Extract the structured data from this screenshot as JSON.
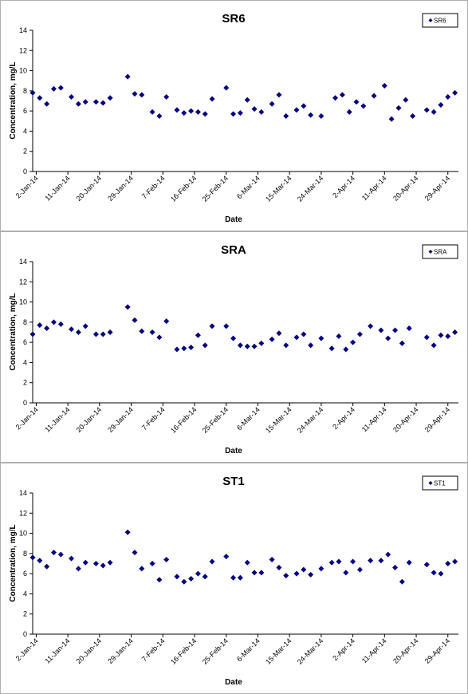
{
  "chart_data": [
    {
      "type": "scatter",
      "title": "SR6",
      "xlabel": "Date",
      "ylabel": "Concentration, mg/L",
      "ylim": [
        0,
        14
      ],
      "yticks": [
        0,
        2,
        4,
        6,
        8,
        10,
        12,
        14
      ],
      "xticks": [
        "2-Jan-14",
        "11-Jan-14",
        "20-Jan-14",
        "29-Jan-14",
        "7-Feb-14",
        "16-Feb-14",
        "25-Feb-14",
        "6-Mar-14",
        "15-Mar-14",
        "24-Mar-14",
        "2-Apr-14",
        "11-Apr-14",
        "20-Apr-14",
        "29-Apr-14"
      ],
      "xlim": [
        "1-Jan-14",
        "2-May-14"
      ],
      "grid": false,
      "legend": "top-right",
      "color": "#000080",
      "series": [
        {
          "name": "SR6",
          "points": [
            [
              "1-Jan-14",
              7.8
            ],
            [
              "3-Jan-14",
              7.3
            ],
            [
              "5-Jan-14",
              6.7
            ],
            [
              "7-Jan-14",
              8.2
            ],
            [
              "9-Jan-14",
              8.3
            ],
            [
              "12-Jan-14",
              7.4
            ],
            [
              "14-Jan-14",
              6.7
            ],
            [
              "16-Jan-14",
              6.9
            ],
            [
              "19-Jan-14",
              6.9
            ],
            [
              "21-Jan-14",
              6.8
            ],
            [
              "23-Jan-14",
              7.3
            ],
            [
              "28-Jan-14",
              9.4
            ],
            [
              "30-Jan-14",
              7.7
            ],
            [
              "1-Feb-14",
              7.6
            ],
            [
              "4-Feb-14",
              5.9
            ],
            [
              "6-Feb-14",
              5.5
            ],
            [
              "8-Feb-14",
              7.4
            ],
            [
              "11-Feb-14",
              6.1
            ],
            [
              "13-Feb-14",
              5.8
            ],
            [
              "15-Feb-14",
              6.0
            ],
            [
              "17-Feb-14",
              5.9
            ],
            [
              "19-Feb-14",
              5.7
            ],
            [
              "21-Feb-14",
              7.2
            ],
            [
              "25-Feb-14",
              8.3
            ],
            [
              "27-Feb-14",
              5.7
            ],
            [
              "1-Mar-14",
              5.8
            ],
            [
              "3-Mar-14",
              7.1
            ],
            [
              "5-Mar-14",
              6.2
            ],
            [
              "7-Mar-14",
              5.9
            ],
            [
              "10-Mar-14",
              6.7
            ],
            [
              "12-Mar-14",
              7.6
            ],
            [
              "14-Mar-14",
              5.5
            ],
            [
              "17-Mar-14",
              6.1
            ],
            [
              "19-Mar-14",
              6.5
            ],
            [
              "21-Mar-14",
              5.6
            ],
            [
              "24-Mar-14",
              5.5
            ],
            [
              "28-Mar-14",
              7.3
            ],
            [
              "30-Mar-14",
              7.6
            ],
            [
              "1-Apr-14",
              5.9
            ],
            [
              "3-Apr-14",
              6.9
            ],
            [
              "5-Apr-14",
              6.5
            ],
            [
              "8-Apr-14",
              7.5
            ],
            [
              "11-Apr-14",
              8.5
            ],
            [
              "13-Apr-14",
              5.2
            ],
            [
              "15-Apr-14",
              6.3
            ],
            [
              "17-Apr-14",
              7.1
            ],
            [
              "19-Apr-14",
              5.5
            ],
            [
              "23-Apr-14",
              6.1
            ],
            [
              "25-Apr-14",
              5.9
            ],
            [
              "27-Apr-14",
              6.6
            ],
            [
              "29-Apr-14",
              7.4
            ],
            [
              "1-May-14",
              7.8
            ]
          ]
        }
      ]
    },
    {
      "type": "scatter",
      "title": "SRA",
      "xlabel": "Date",
      "ylabel": "Concentration, mg/L",
      "ylim": [
        0,
        14
      ],
      "yticks": [
        0,
        2,
        4,
        6,
        8,
        10,
        12,
        14
      ],
      "xticks": [
        "2-Jan-14",
        "11-Jan-14",
        "20-Jan-14",
        "29-Jan-14",
        "7-Feb-14",
        "16-Feb-14",
        "25-Feb-14",
        "6-Mar-14",
        "15-Mar-14",
        "24-Mar-14",
        "2-Apr-14",
        "11-Apr-14",
        "20-Apr-14",
        "29-Apr-14"
      ],
      "xlim": [
        "1-Jan-14",
        "2-May-14"
      ],
      "grid": false,
      "legend": "top-right",
      "color": "#000080",
      "series": [
        {
          "name": "SRA",
          "points": [
            [
              "1-Jan-14",
              6.8
            ],
            [
              "3-Jan-14",
              7.7
            ],
            [
              "5-Jan-14",
              7.4
            ],
            [
              "7-Jan-14",
              8.0
            ],
            [
              "9-Jan-14",
              7.8
            ],
            [
              "12-Jan-14",
              7.3
            ],
            [
              "14-Jan-14",
              7.0
            ],
            [
              "16-Jan-14",
              7.6
            ],
            [
              "19-Jan-14",
              6.8
            ],
            [
              "21-Jan-14",
              6.8
            ],
            [
              "23-Jan-14",
              7.0
            ],
            [
              "28-Jan-14",
              9.5
            ],
            [
              "30-Jan-14",
              8.2
            ],
            [
              "1-Feb-14",
              7.1
            ],
            [
              "4-Feb-14",
              7.0
            ],
            [
              "6-Feb-14",
              6.5
            ],
            [
              "8-Feb-14",
              8.1
            ],
            [
              "11-Feb-14",
              5.3
            ],
            [
              "13-Feb-14",
              5.4
            ],
            [
              "15-Feb-14",
              5.5
            ],
            [
              "17-Feb-14",
              6.7
            ],
            [
              "19-Feb-14",
              5.7
            ],
            [
              "21-Feb-14",
              7.6
            ],
            [
              "25-Feb-14",
              7.6
            ],
            [
              "27-Feb-14",
              6.4
            ],
            [
              "1-Mar-14",
              5.7
            ],
            [
              "3-Mar-14",
              5.6
            ],
            [
              "5-Mar-14",
              5.6
            ],
            [
              "7-Mar-14",
              5.9
            ],
            [
              "10-Mar-14",
              6.3
            ],
            [
              "12-Mar-14",
              6.9
            ],
            [
              "14-Mar-14",
              5.7
            ],
            [
              "17-Mar-14",
              6.5
            ],
            [
              "19-Mar-14",
              6.8
            ],
            [
              "21-Mar-14",
              5.7
            ],
            [
              "24-Mar-14",
              6.4
            ],
            [
              "27-Mar-14",
              5.4
            ],
            [
              "29-Mar-14",
              6.6
            ],
            [
              "31-Mar-14",
              5.3
            ],
            [
              "2-Apr-14",
              6.0
            ],
            [
              "4-Apr-14",
              6.8
            ],
            [
              "7-Apr-14",
              7.6
            ],
            [
              "10-Apr-14",
              7.2
            ],
            [
              "12-Apr-14",
              6.4
            ],
            [
              "14-Apr-14",
              7.2
            ],
            [
              "16-Apr-14",
              5.9
            ],
            [
              "18-Apr-14",
              7.4
            ],
            [
              "23-Apr-14",
              6.5
            ],
            [
              "25-Apr-14",
              5.7
            ],
            [
              "27-Apr-14",
              6.7
            ],
            [
              "29-Apr-14",
              6.6
            ],
            [
              "1-May-14",
              7.0
            ]
          ]
        }
      ]
    },
    {
      "type": "scatter",
      "title": "ST1",
      "xlabel": "Date",
      "ylabel": "Concentration, mg/L",
      "ylim": [
        0,
        14
      ],
      "yticks": [
        0,
        2,
        4,
        6,
        8,
        10,
        12,
        14
      ],
      "xticks": [
        "2-Jan-14",
        "11-Jan-14",
        "20-Jan-14",
        "29-Jan-14",
        "7-Feb-14",
        "16-Feb-14",
        "25-Feb-14",
        "6-Mar-14",
        "15-Mar-14",
        "24-Mar-14",
        "2-Apr-14",
        "11-Apr-14",
        "20-Apr-14",
        "29-Apr-14"
      ],
      "xlim": [
        "1-Jan-14",
        "2-May-14"
      ],
      "grid": false,
      "legend": "top-right",
      "color": "#000080",
      "series": [
        {
          "name": "ST1",
          "points": [
            [
              "1-Jan-14",
              7.6
            ],
            [
              "3-Jan-14",
              7.3
            ],
            [
              "5-Jan-14",
              6.7
            ],
            [
              "7-Jan-14",
              8.1
            ],
            [
              "9-Jan-14",
              7.9
            ],
            [
              "12-Jan-14",
              7.5
            ],
            [
              "14-Jan-14",
              6.5
            ],
            [
              "16-Jan-14",
              7.1
            ],
            [
              "19-Jan-14",
              7.0
            ],
            [
              "21-Jan-14",
              6.8
            ],
            [
              "23-Jan-14",
              7.1
            ],
            [
              "28-Jan-14",
              10.1
            ],
            [
              "30-Jan-14",
              8.1
            ],
            [
              "1-Feb-14",
              6.5
            ],
            [
              "4-Feb-14",
              7.0
            ],
            [
              "6-Feb-14",
              5.4
            ],
            [
              "8-Feb-14",
              7.4
            ],
            [
              "11-Feb-14",
              5.7
            ],
            [
              "13-Feb-14",
              5.2
            ],
            [
              "15-Feb-14",
              5.5
            ],
            [
              "17-Feb-14",
              6.0
            ],
            [
              "19-Feb-14",
              5.7
            ],
            [
              "21-Feb-14",
              7.2
            ],
            [
              "25-Feb-14",
              7.7
            ],
            [
              "27-Feb-14",
              5.6
            ],
            [
              "1-Mar-14",
              5.6
            ],
            [
              "3-Mar-14",
              7.1
            ],
            [
              "5-Mar-14",
              6.1
            ],
            [
              "7-Mar-14",
              6.1
            ],
            [
              "10-Mar-14",
              7.4
            ],
            [
              "12-Mar-14",
              6.6
            ],
            [
              "14-Mar-14",
              5.8
            ],
            [
              "17-Mar-14",
              6.0
            ],
            [
              "19-Mar-14",
              6.4
            ],
            [
              "21-Mar-14",
              5.9
            ],
            [
              "24-Mar-14",
              6.5
            ],
            [
              "27-Mar-14",
              7.1
            ],
            [
              "29-Mar-14",
              7.2
            ],
            [
              "31-Mar-14",
              6.1
            ],
            [
              "2-Apr-14",
              7.2
            ],
            [
              "4-Apr-14",
              6.4
            ],
            [
              "7-Apr-14",
              7.3
            ],
            [
              "10-Apr-14",
              7.3
            ],
            [
              "12-Apr-14",
              7.9
            ],
            [
              "14-Apr-14",
              6.6
            ],
            [
              "16-Apr-14",
              5.2
            ],
            [
              "18-Apr-14",
              7.1
            ],
            [
              "23-Apr-14",
              6.9
            ],
            [
              "25-Apr-14",
              6.1
            ],
            [
              "27-Apr-14",
              6.0
            ],
            [
              "29-Apr-14",
              7.0
            ],
            [
              "1-May-14",
              7.2
            ]
          ]
        }
      ]
    }
  ]
}
